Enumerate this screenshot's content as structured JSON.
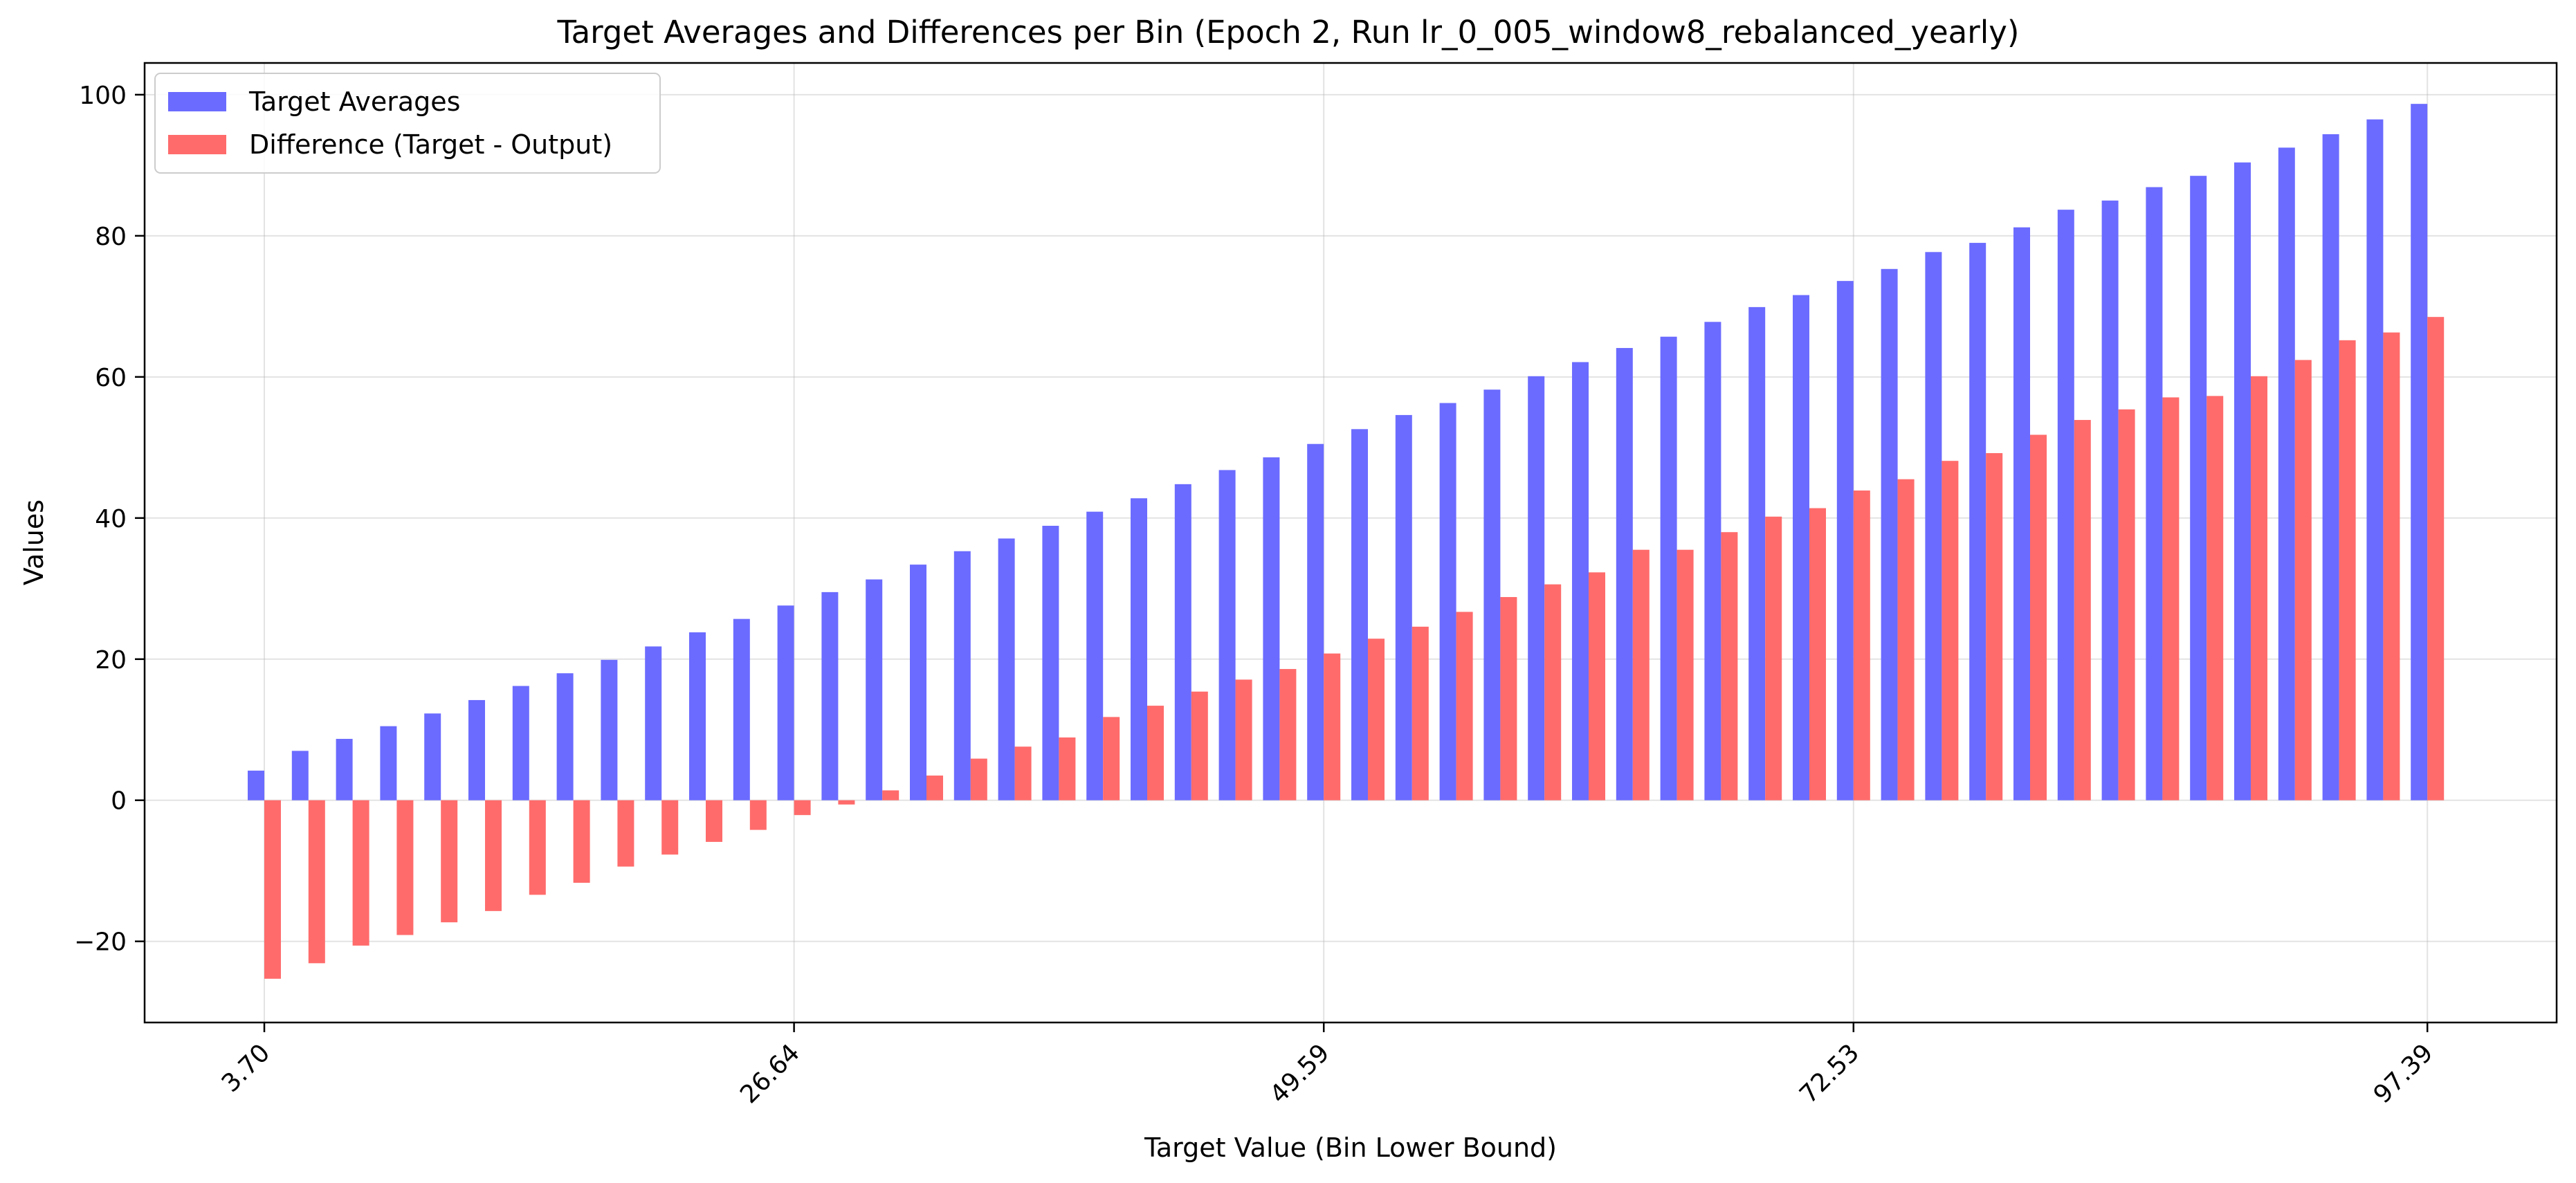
{
  "chart_data": {
    "type": "bar",
    "title": "Target Averages and Differences per Bin (Epoch 2, Run lr_0_005_window8_rebalanced_yearly)",
    "xlabel": "Target Value (Bin Lower Bound)",
    "ylabel": "Values",
    "ylim": [
      -31.5,
      104.5
    ],
    "yticks": [
      -20,
      0,
      20,
      40,
      60,
      80,
      100
    ],
    "ytick_labels": [
      "−20",
      "0",
      "20",
      "40",
      "60",
      "80",
      "100"
    ],
    "grid": true,
    "legend_position": "top-left",
    "x_tick_labels": [
      {
        "index": 0,
        "label": "3.70"
      },
      {
        "index": 12,
        "label": "26.64"
      },
      {
        "index": 24,
        "label": "49.59"
      },
      {
        "index": 36,
        "label": "72.53"
      },
      {
        "index": 49,
        "label": "97.39"
      }
    ],
    "series": [
      {
        "name": "Target Averages",
        "color": "#6b6bff",
        "values": [
          4.2,
          7.0,
          8.7,
          10.5,
          12.3,
          14.2,
          16.2,
          18.0,
          19.9,
          21.8,
          23.8,
          25.7,
          27.6,
          29.5,
          31.3,
          33.4,
          35.3,
          37.1,
          38.9,
          40.9,
          42.8,
          44.8,
          46.8,
          48.6,
          50.5,
          52.6,
          54.6,
          56.3,
          58.2,
          60.1,
          62.1,
          64.1,
          65.7,
          67.8,
          69.9,
          71.6,
          73.6,
          75.3,
          77.7,
          79.0,
          81.2,
          83.7,
          85.0,
          86.9,
          88.5,
          90.4,
          92.5,
          94.4,
          96.5,
          98.7
        ]
      },
      {
        "name": "Difference (Target - Output)",
        "color": "#ff6b6b",
        "values": [
          -25.3,
          -23.1,
          -20.6,
          -19.1,
          -17.3,
          -15.7,
          -13.4,
          -11.7,
          -9.4,
          -7.7,
          -5.9,
          -4.2,
          -2.1,
          -0.6,
          1.4,
          3.5,
          5.9,
          7.6,
          8.9,
          11.8,
          13.4,
          15.4,
          17.1,
          18.6,
          20.8,
          22.9,
          24.6,
          26.7,
          28.8,
          30.6,
          32.3,
          35.5,
          35.5,
          38.0,
          40.2,
          41.4,
          43.9,
          45.5,
          48.1,
          49.2,
          51.8,
          53.9,
          55.4,
          57.1,
          57.3,
          60.1,
          62.4,
          65.2,
          66.3,
          68.5
        ]
      }
    ]
  }
}
